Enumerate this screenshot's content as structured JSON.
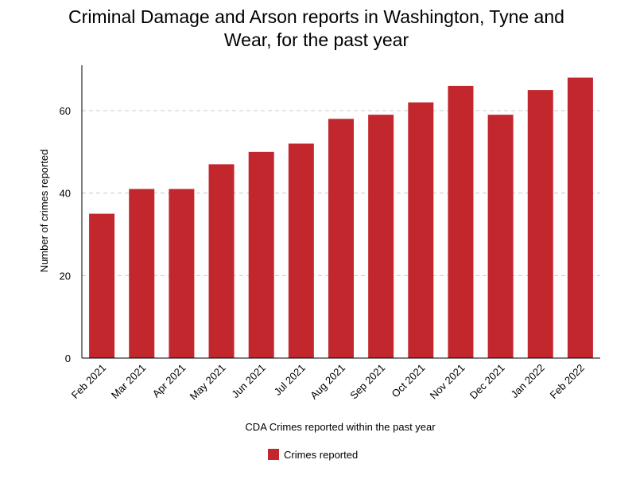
{
  "chart_data": {
    "type": "bar",
    "title": "Criminal Damage and Arson reports in Washington, Tyne and Wear, for the past year",
    "title_lines": [
      "Criminal Damage and Arson reports in Washington, Tyne and",
      "Wear, for the past year"
    ],
    "xlabel": "CDA Crimes reported within the past year",
    "ylabel": "Number of crimes reported",
    "categories": [
      "Feb 2021",
      "Mar 2021",
      "Apr 2021",
      "May 2021",
      "Jun 2021",
      "Jul 2021",
      "Aug 2021",
      "Sep 2021",
      "Oct 2021",
      "Nov 2021",
      "Dec 2021",
      "Jan 2022",
      "Feb 2022"
    ],
    "series": [
      {
        "name": "Crimes reported",
        "color": "#c1272d",
        "values": [
          35,
          41,
          41,
          47,
          50,
          52,
          58,
          59,
          62,
          66,
          59,
          65,
          68
        ]
      }
    ],
    "ylim": [
      0,
      71
    ],
    "yticks": [
      0,
      20,
      40,
      60
    ],
    "grid": true,
    "legend_position": "bottom-center"
  }
}
